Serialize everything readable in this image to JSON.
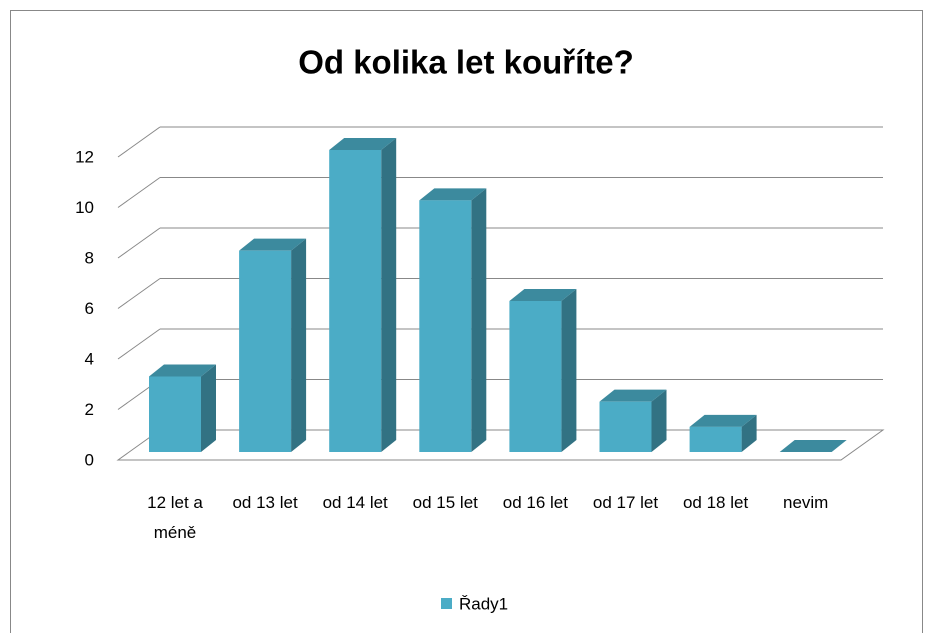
{
  "chart_data": {
    "type": "bar3d",
    "title": "Od kolika let kouříte?",
    "categories": [
      "12 let a méně",
      "od 13 let",
      "od 14 let",
      "od 15 let",
      "od 16 let",
      "od 17 let",
      "od 18 let",
      "nevim"
    ],
    "series": [
      {
        "name": "Řady1",
        "color": "#4bacc6",
        "values": [
          3,
          8,
          12,
          10,
          6,
          2,
          1,
          0
        ]
      }
    ],
    "ylim": [
      0,
      12
    ],
    "yticks": [
      0,
      2,
      4,
      6,
      8,
      10,
      12
    ],
    "grid": true,
    "legend": "bottom"
  }
}
